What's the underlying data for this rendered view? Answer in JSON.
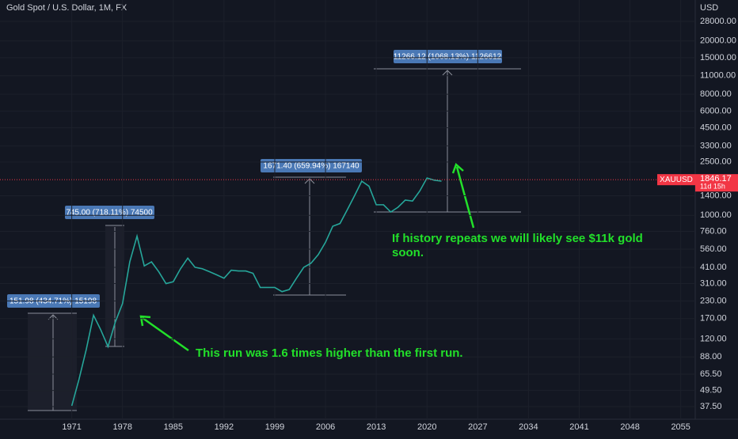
{
  "chart_data": {
    "type": "line",
    "title": "Gold Spot / U.S. Dollar, 1M, FX",
    "y_unit": "USD",
    "symbol": "XAUUSD",
    "last_price": 1846.17,
    "countdown": "11d 15h",
    "log_scale": true,
    "color": "#26a69a",
    "x": [
      1971,
      1972,
      1973,
      1974,
      1975,
      1976,
      1977,
      1978,
      1979,
      1980,
      1981,
      1982,
      1983,
      1984,
      1985,
      1986,
      1987,
      1988,
      1989,
      1990,
      1991,
      1992,
      1993,
      1994,
      1995,
      1996,
      1997,
      1998,
      1999,
      2000,
      2001,
      2002,
      2003,
      2004,
      2005,
      2006,
      2007,
      2008,
      2009,
      2010,
      2011,
      2012,
      2013,
      2014,
      2015,
      2016,
      2017,
      2018,
      2019,
      2020,
      2021,
      2022
    ],
    "values": [
      38,
      60,
      100,
      180,
      140,
      105,
      160,
      220,
      450,
      700,
      420,
      450,
      380,
      310,
      320,
      400,
      480,
      410,
      400,
      380,
      360,
      340,
      390,
      385,
      385,
      370,
      290,
      290,
      290,
      270,
      280,
      340,
      410,
      440,
      510,
      630,
      830,
      870,
      1100,
      1400,
      1800,
      1650,
      1200,
      1200,
      1060,
      1150,
      1300,
      1280,
      1520,
      1900,
      1830,
      1800
    ],
    "xlim": [
      1961.1,
      2057
    ],
    "xticks": [
      1971,
      1978,
      1985,
      1992,
      1999,
      2006,
      2013,
      2020,
      2027,
      2034,
      2041,
      2048,
      2055
    ],
    "ylim": [
      30.2,
      40370
    ],
    "yticks": [
      {
        "value": 28000,
        "label": "28000.00"
      },
      {
        "value": 20000,
        "label": "20000.00"
      },
      {
        "value": 15000,
        "label": "15000.00"
      },
      {
        "value": 11000,
        "label": "11000.00"
      },
      {
        "value": 8000,
        "label": "8000.00"
      },
      {
        "value": 6000,
        "label": "6000.00"
      },
      {
        "value": 4500,
        "label": "4500.00"
      },
      {
        "value": 3300,
        "label": "3300.00"
      },
      {
        "value": 2500,
        "label": "2500.00"
      },
      {
        "value": 1400,
        "label": "1400.00"
      },
      {
        "value": 1000,
        "label": "1000.00"
      },
      {
        "value": 760,
        "label": "760.00"
      },
      {
        "value": 560,
        "label": "560.00"
      },
      {
        "value": 410,
        "label": "410.00"
      },
      {
        "value": 310,
        "label": "310.00"
      },
      {
        "value": 230,
        "label": "230.00"
      },
      {
        "value": 170,
        "label": "170.00"
      },
      {
        "value": 120,
        "label": "120.00"
      },
      {
        "value": 88,
        "label": "88.00"
      },
      {
        "value": 65.5,
        "label": "65.50"
      },
      {
        "value": 49.5,
        "label": "49.50"
      },
      {
        "value": 37.5,
        "label": "37.50"
      }
    ],
    "measurements": [
      "151.98 (434.71%) 15198",
      "745.00 (718.11%) 74500",
      "1671.40 (659.94%) 167140",
      "11266.12 (1068.13%) 1126612"
    ],
    "annotations": [
      "This run was 1.6 times higher than the first run.",
      "If history repeats we will likely see $11k gold soon."
    ]
  }
}
